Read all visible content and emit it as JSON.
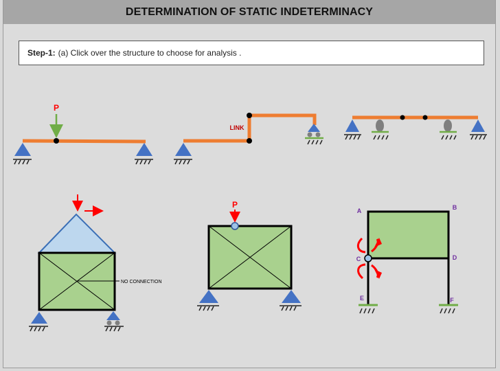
{
  "header": {
    "title": "DETERMINATION OF STATIC INDETERMINACY"
  },
  "instruction": {
    "step_label": "Step-1:",
    "text": "(a) Click over the structure to choose for analysis ."
  },
  "structures": {
    "beam1": {
      "load_label": "P"
    },
    "beam2": {
      "link_label": "LINK"
    },
    "frame1": {
      "note": "NO CONNECTION"
    },
    "frame2": {
      "load_label": "P"
    },
    "frame3": {
      "labels": [
        "A",
        "B",
        "C",
        "D",
        "E",
        "F"
      ]
    }
  },
  "colors": {
    "beam": "#ee7d31",
    "support": "#4472c4",
    "panel_fill": "#a9d18e",
    "roof_fill": "#bdd7ee",
    "load_arrow_red": "#ff0000",
    "load_arrow_green": "#70ad47",
    "label_purple": "#7030a0",
    "roller": "#7f7f7f"
  }
}
